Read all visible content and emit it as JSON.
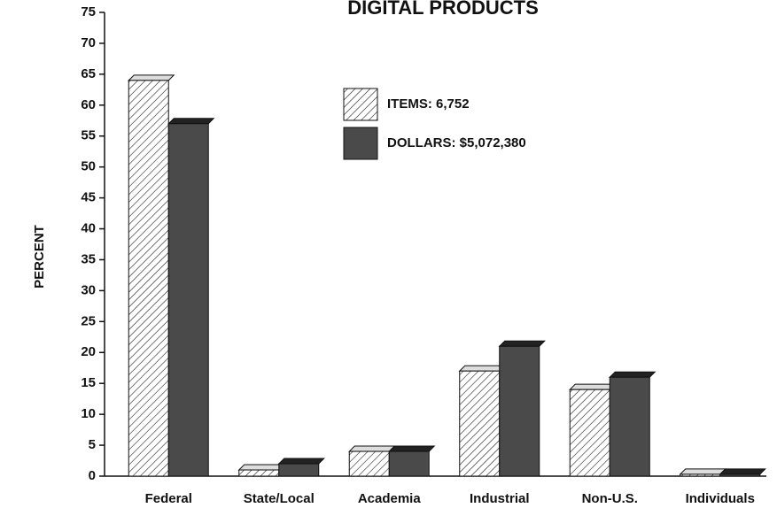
{
  "chart_data": {
    "type": "bar",
    "title": "DIGITAL PRODUCTS",
    "y_label": "PERCENT",
    "categories": [
      "Federal",
      "State/Local",
      "Academia",
      "Industrial",
      "Non-U.S.",
      "Individuals"
    ],
    "series": [
      {
        "name": "ITEMS: 6,752",
        "color": "#ffffff",
        "pattern": "hatch",
        "values": [
          64,
          1,
          4,
          17,
          14,
          0.3
        ]
      },
      {
        "name": "DOLLARS: $5,072,380",
        "color": "#4a4a4a",
        "values": [
          57,
          2,
          4,
          21,
          16,
          0.3
        ]
      }
    ],
    "ylim": [
      0,
      75
    ],
    "yticks": [
      0,
      5,
      10,
      15,
      20,
      25,
      30,
      35,
      40,
      45,
      50,
      55,
      60,
      65,
      70,
      75
    ]
  }
}
